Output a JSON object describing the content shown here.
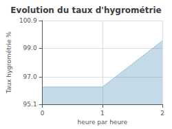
{
  "chart_data": {
    "type": "area",
    "title": "Evolution du taux d'hygrométrie",
    "xlabel": "heure par heure",
    "ylabel": "Taux hygrométrie %",
    "x": [
      0,
      1,
      2
    ],
    "values": [
      96.3,
      96.3,
      99.5
    ],
    "color": "#5599bb",
    "line_style": "dotted",
    "xlim": [
      0,
      2
    ],
    "xticks": [
      0,
      1,
      2
    ],
    "ylim": [
      95.1,
      100.9
    ],
    "yticks": [
      95.1,
      {
        "value": 97.0,
        "label": "97.0"
      },
      {
        "value": 99.0,
        "label": "99.0"
      },
      100.9
    ],
    "grid": true
  }
}
